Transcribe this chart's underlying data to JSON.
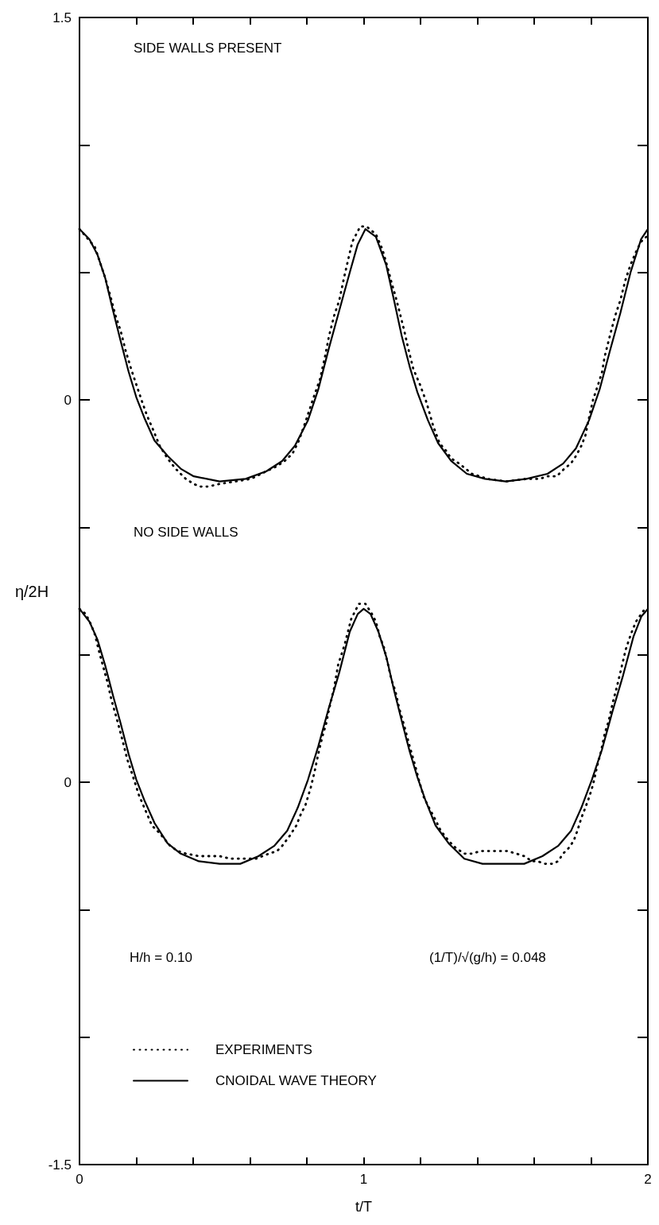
{
  "chart_data": [
    {
      "type": "line",
      "title": "SIDE WALLS PRESENT",
      "ylabel": "η/2H",
      "xlim": [
        0,
        2
      ],
      "xticks": [
        0,
        {
          "value": 0.2,
          "label": null
        },
        {
          "value": 0.4,
          "label": null
        },
        {
          "value": 0.6,
          "label": null
        },
        {
          "value": 0.8,
          "label": null
        },
        1,
        {
          "value": 1.2,
          "label": null
        },
        {
          "value": 1.4,
          "label": null
        },
        {
          "value": 1.6,
          "label": null
        },
        {
          "value": 1.8,
          "label": null
        },
        2
      ],
      "ylim": [
        -0.75,
        1.5
      ],
      "yticks": [
        1.5,
        {
          "value": 1,
          "label": null
        },
        {
          "value": 0.5,
          "label": null
        },
        0,
        {
          "value": -0.5,
          "label": null
        }
      ],
      "tick_labels": "y",
      "series": [
        {
          "color": "#000000",
          "line_style": "dotted",
          "x": [
            0,
            0.054,
            0.072,
            0.09,
            0.108,
            0.127,
            0.145,
            0.163,
            0.182,
            0.2,
            0.218,
            0.237,
            0.26,
            0.282,
            0.31,
            0.338,
            0.374,
            0.402,
            0.424,
            0.452,
            0.493,
            0.548,
            0.603,
            0.658,
            0.695,
            0.722,
            0.75,
            0.772,
            0.791,
            0.809,
            0.827,
            0.846,
            0.864,
            0.878,
            0.896,
            0.914,
            0.933,
            0.96,
            0.988,
            1.01,
            1.043,
            1.066,
            1.084,
            1.098,
            1.111,
            1.125,
            1.143,
            1.157,
            1.175,
            1.198,
            1.221,
            1.244,
            1.267,
            1.29,
            1.308,
            1.336,
            1.381,
            1.436,
            1.5,
            1.573,
            1.619,
            1.647,
            1.679,
            1.706,
            1.729,
            1.747,
            1.766,
            1.78,
            1.793,
            1.807,
            1.825,
            1.839,
            1.848,
            1.866,
            1.885,
            1.903,
            1.921,
            1.939,
            1.958,
            1.976,
            1.995
          ],
          "values": [
            0.67,
            0.6,
            0.54,
            0.48,
            0.41,
            0.33,
            0.27,
            0.19,
            0.12,
            0.06,
            0.0,
            -0.06,
            -0.12,
            -0.18,
            -0.23,
            -0.27,
            -0.31,
            -0.33,
            -0.34,
            -0.34,
            -0.33,
            -0.32,
            -0.31,
            -0.28,
            -0.26,
            -0.24,
            -0.21,
            -0.16,
            -0.1,
            -0.04,
            0.02,
            0.08,
            0.17,
            0.25,
            0.33,
            0.39,
            0.49,
            0.62,
            0.68,
            0.68,
            0.65,
            0.59,
            0.52,
            0.46,
            0.41,
            0.35,
            0.27,
            0.2,
            0.12,
            0.06,
            -0.01,
            -0.1,
            -0.17,
            -0.2,
            -0.23,
            -0.25,
            -0.29,
            -0.31,
            -0.32,
            -0.31,
            -0.31,
            -0.3,
            -0.3,
            -0.27,
            -0.25,
            -0.22,
            -0.18,
            -0.14,
            -0.07,
            0.0,
            0.06,
            0.11,
            0.17,
            0.25,
            0.33,
            0.39,
            0.47,
            0.53,
            0.58,
            0.62,
            0.64
          ]
        },
        {
          "color": "#000000",
          "line_style": "solid",
          "x": [
            0,
            0.035,
            0.063,
            0.09,
            0.118,
            0.145,
            0.173,
            0.2,
            0.228,
            0.264,
            0.31,
            0.356,
            0.402,
            0.493,
            0.585,
            0.658,
            0.713,
            0.758,
            0.804,
            0.84,
            0.877,
            0.914,
            0.951,
            0.979,
            1.006,
            1.043,
            1.079,
            1.107,
            1.134,
            1.162,
            1.189,
            1.226,
            1.262,
            1.308,
            1.363,
            1.427,
            1.5,
            1.573,
            1.647,
            1.702,
            1.747,
            1.793,
            1.83,
            1.866,
            1.903,
            1.939,
            1.976,
            2.0
          ],
          "values": [
            0.67,
            0.63,
            0.57,
            0.48,
            0.35,
            0.23,
            0.11,
            0.01,
            -0.07,
            -0.16,
            -0.22,
            -0.27,
            -0.3,
            -0.32,
            -0.31,
            -0.28,
            -0.24,
            -0.18,
            -0.08,
            0.04,
            0.2,
            0.35,
            0.5,
            0.61,
            0.67,
            0.64,
            0.53,
            0.39,
            0.25,
            0.13,
            0.03,
            -0.08,
            -0.17,
            -0.24,
            -0.29,
            -0.31,
            -0.32,
            -0.31,
            -0.29,
            -0.25,
            -0.19,
            -0.08,
            0.04,
            0.19,
            0.34,
            0.5,
            0.63,
            0.67
          ]
        }
      ]
    },
    {
      "type": "line",
      "title": "NO SIDE WALLS",
      "xlabel": "t/T",
      "xlim": [
        0,
        2
      ],
      "xticks": [
        0,
        {
          "value": 0.2,
          "label": null
        },
        {
          "value": 0.4,
          "label": null
        },
        {
          "value": 0.6,
          "label": null
        },
        {
          "value": 0.8,
          "label": null
        },
        1,
        {
          "value": 1.2,
          "label": null
        },
        {
          "value": 1.4,
          "label": null
        },
        {
          "value": 1.6,
          "label": null
        },
        {
          "value": 1.8,
          "label": null
        },
        2
      ],
      "ylim": [
        -1.5,
        0.75
      ],
      "yticks": [
        {
          "value": 0.5,
          "label": null
        },
        0,
        {
          "value": -0.5,
          "label": null
        },
        {
          "value": -1,
          "label": null
        },
        -1.5
      ],
      "legend": "bottom left",
      "annotations": [
        "H/h = 0.10",
        "(1/T)/√(g/h) = 0.048"
      ],
      "series": [
        {
          "name": "EXPERIMENTS",
          "color": "#000000",
          "line_style": "dotted",
          "x": [
            0,
            0.022,
            0.04,
            0.054,
            0.072,
            0.099,
            0.113,
            0.131,
            0.15,
            0.168,
            0.186,
            0.209,
            0.232,
            0.255,
            0.282,
            0.319,
            0.346,
            0.374,
            0.42,
            0.456,
            0.493,
            0.53,
            0.585,
            0.621,
            0.667,
            0.695,
            0.713,
            0.74,
            0.763,
            0.777,
            0.795,
            0.814,
            0.827,
            0.84,
            0.855,
            0.868,
            0.877,
            0.896,
            0.91,
            0.933,
            0.956,
            0.983,
            1.006,
            1.029,
            1.043,
            1.057,
            1.071,
            1.084,
            1.098,
            1.111,
            1.125,
            1.143,
            1.162,
            1.18,
            1.194,
            1.212,
            1.23,
            1.249,
            1.271,
            1.299,
            1.326,
            1.354,
            1.381,
            1.413,
            1.441,
            1.473,
            1.505,
            1.537,
            1.565,
            1.592,
            1.611,
            1.638,
            1.665,
            1.684,
            1.702,
            1.72,
            1.739,
            1.752,
            1.766,
            1.78,
            1.793,
            1.807,
            1.821,
            1.835,
            1.848,
            1.862,
            1.876,
            1.89,
            1.903,
            1.922,
            1.94,
            1.958,
            1.977,
            1.995
          ],
          "values": [
            0.68,
            0.66,
            0.62,
            0.58,
            0.5,
            0.39,
            0.32,
            0.25,
            0.17,
            0.09,
            0.03,
            -0.05,
            -0.11,
            -0.17,
            -0.2,
            -0.25,
            -0.27,
            -0.28,
            -0.29,
            -0.29,
            -0.29,
            -0.3,
            -0.3,
            -0.3,
            -0.28,
            -0.27,
            -0.25,
            -0.21,
            -0.17,
            -0.13,
            -0.09,
            -0.02,
            0.04,
            0.11,
            0.18,
            0.23,
            0.28,
            0.37,
            0.46,
            0.54,
            0.64,
            0.7,
            0.7,
            0.66,
            0.63,
            0.57,
            0.53,
            0.47,
            0.4,
            0.36,
            0.29,
            0.22,
            0.14,
            0.07,
            0.01,
            -0.06,
            -0.1,
            -0.14,
            -0.19,
            -0.23,
            -0.26,
            -0.28,
            -0.28,
            -0.27,
            -0.27,
            -0.27,
            -0.27,
            -0.28,
            -0.29,
            -0.31,
            -0.31,
            -0.32,
            -0.32,
            -0.31,
            -0.28,
            -0.26,
            -0.23,
            -0.19,
            -0.14,
            -0.1,
            -0.06,
            -0.01,
            0.06,
            0.12,
            0.19,
            0.24,
            0.31,
            0.37,
            0.43,
            0.52,
            0.58,
            0.63,
            0.66,
            0.69
          ]
        },
        {
          "name": "CNOIDAL WAVE THEORY",
          "color": "#000000",
          "line_style": "solid",
          "x": [
            0,
            0.035,
            0.063,
            0.09,
            0.118,
            0.145,
            0.173,
            0.2,
            0.228,
            0.264,
            0.31,
            0.356,
            0.42,
            0.493,
            0.566,
            0.63,
            0.685,
            0.731,
            0.768,
            0.804,
            0.84,
            0.877,
            0.914,
            0.951,
            0.979,
            1.0,
            1.024,
            1.052,
            1.08,
            1.107,
            1.134,
            1.162,
            1.189,
            1.217,
            1.253,
            1.299,
            1.354,
            1.418,
            1.491,
            1.565,
            1.629,
            1.684,
            1.73,
            1.766,
            1.803,
            1.839,
            1.876,
            1.913,
            1.949,
            1.977,
            2.0
          ],
          "values": [
            0.68,
            0.63,
            0.56,
            0.46,
            0.34,
            0.23,
            0.11,
            0.01,
            -0.07,
            -0.16,
            -0.24,
            -0.28,
            -0.31,
            -0.32,
            -0.32,
            -0.29,
            -0.25,
            -0.19,
            -0.1,
            0.01,
            0.14,
            0.29,
            0.43,
            0.59,
            0.66,
            0.68,
            0.66,
            0.59,
            0.49,
            0.36,
            0.24,
            0.12,
            0.02,
            -0.07,
            -0.17,
            -0.24,
            -0.3,
            -0.32,
            -0.32,
            -0.32,
            -0.29,
            -0.25,
            -0.19,
            -0.1,
            0.01,
            0.13,
            0.28,
            0.42,
            0.57,
            0.65,
            0.68
          ]
        }
      ]
    }
  ]
}
